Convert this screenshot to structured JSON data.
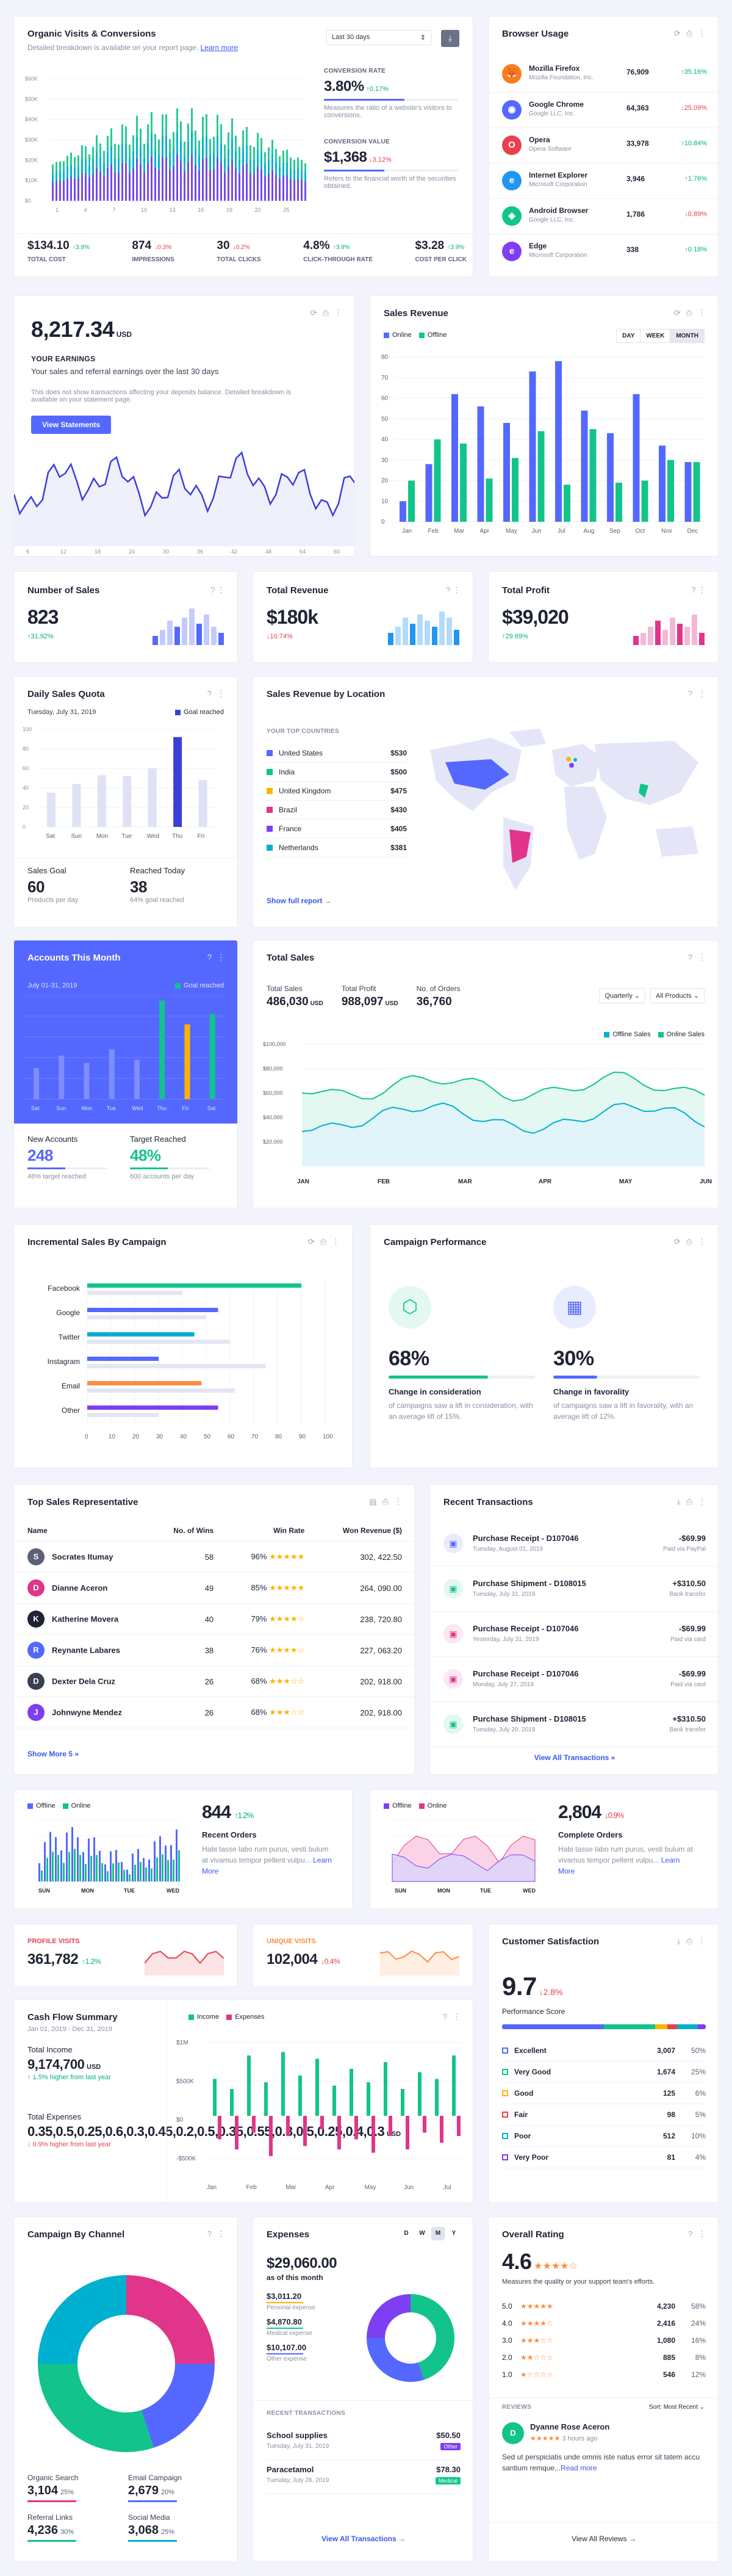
{
  "organic": {
    "title": "Organic Visits & Conversions",
    "subtitle": "Detailed breakdown is available on your report page.",
    "link": "Learn more",
    "range": "Last 30 days",
    "yticks": [
      "$60K",
      "$50K",
      "$40K",
      "$30K",
      "$20K",
      "$10K",
      "$0"
    ],
    "xticks": [
      "1",
      "4",
      "7",
      "10",
      "13",
      "16",
      "19",
      "22",
      "25"
    ],
    "conv_label": "CONVERSION RATE",
    "conv_value": "3.80%",
    "conv_delta": "↑0.17%",
    "conv_desc": "Measures the ratio of a website's visitors to conversions.",
    "cval_label": "CONVERSION VALUE",
    "cval_value": "$1,368",
    "cval_delta": "↓3.12%",
    "cval_desc": "Refers to the financial worth of the securities obtained.",
    "stats": [
      {
        "value": "$134.10",
        "delta": "↑3.9%",
        "dir": "up",
        "label": "TOTAL COST"
      },
      {
        "value": "874",
        "delta": "↓0.3%",
        "dir": "dn",
        "label": "IMPRESSIONS"
      },
      {
        "value": "30",
        "delta": "↓0.2%",
        "dir": "dn",
        "label": "TOTAL CLICKS"
      },
      {
        "value": "4.8%",
        "delta": "↑3.9%",
        "dir": "up",
        "label": "CLICK-THROUGH RATE"
      },
      {
        "value": "$3.28",
        "delta": "↑3.9%",
        "dir": "up",
        "label": "COST PER CLICK"
      }
    ]
  },
  "browser": {
    "title": "Browser Usage",
    "items": [
      {
        "name": "Mozilla Firefox",
        "company": "Mozilla Foundation, Inc.",
        "value": "76,909",
        "delta": "↑35.16%",
        "dir": "up",
        "color": "#ff7a1a",
        "icon": "firefox-icon",
        "glyph": "🦊"
      },
      {
        "name": "Google Chrome",
        "company": "Google LLC, Inc.",
        "value": "64,363",
        "delta": "↓25.09%",
        "dir": "dn",
        "color": "#5468ff",
        "icon": "chrome-icon",
        "glyph": "◉"
      },
      {
        "name": "Opera",
        "company": "Opera Software",
        "value": "33,978",
        "delta": "↑10.84%",
        "dir": "up",
        "color": "#e8404d",
        "icon": "opera-icon",
        "glyph": "O"
      },
      {
        "name": "Internet Explorer",
        "company": "Microsoft Corporation",
        "value": "3,946",
        "delta": "↑1.76%",
        "dir": "up",
        "color": "#2196f3",
        "icon": "ie-icon",
        "glyph": "e"
      },
      {
        "name": "Android Browser",
        "company": "Google LLC, Inc.",
        "value": "1,786",
        "dir": "dn",
        "delta": "↓0.89%",
        "color": "#12c48b",
        "icon": "android-icon",
        "glyph": "◈"
      },
      {
        "name": "Edge",
        "company": "Microsoft Corporation",
        "value": "338",
        "delta": "↑0.18%",
        "dir": "up",
        "color": "#7e3ff2",
        "icon": "edge-icon",
        "glyph": "e"
      }
    ]
  },
  "earnings": {
    "value": "8,217.34",
    "unit": "USD",
    "heading": "YOUR EARNINGS",
    "desc": "Your sales and referral earnings over the last 30 days",
    "note": "This does not show transactions affecting your deposits balance. Detailed breakdown is available on your statement page.",
    "button": "View Statements",
    "xticks": [
      "6",
      "12",
      "18",
      "24",
      "30",
      "36",
      "42",
      "48",
      "54",
      "60"
    ]
  },
  "sales_rev": {
    "title": "Sales Revenue",
    "legend": [
      "Online",
      "Offline"
    ],
    "tabs": [
      "DAY",
      "WEEK",
      "MONTH"
    ],
    "yticks": [
      "80",
      "70",
      "60",
      "50",
      "40",
      "30",
      "20",
      "10",
      "0"
    ],
    "months": [
      "Jan",
      "Feb",
      "Mar",
      "Apr",
      "May",
      "Jun",
      "Jul",
      "Aug",
      "Sep",
      "Oct",
      "Nov",
      "Dec"
    ],
    "online": [
      10,
      28,
      62,
      56,
      48,
      73,
      78,
      54,
      43,
      62,
      37,
      29
    ],
    "offline": [
      20,
      40,
      38,
      21,
      31,
      44,
      18,
      45,
      19,
      20,
      30,
      29
    ]
  },
  "mini": [
    {
      "title": "Number of Sales",
      "value": "823",
      "delta": "↑31.92%",
      "dir": "up",
      "color": "#5468ff",
      "bars": [
        3,
        5,
        8,
        6,
        9,
        12,
        7,
        10,
        6,
        4
      ]
    },
    {
      "title": "Total Revenue",
      "value": "$180k",
      "delta": "↓10.74%",
      "dir": "dn",
      "color": "#2196f3",
      "bars": [
        4,
        6,
        9,
        7,
        10,
        8,
        6,
        11,
        9,
        5
      ]
    },
    {
      "title": "Total Profit",
      "value": "$39,020",
      "delta": "↑29.69%",
      "dir": "up",
      "color": "#e0358a",
      "bars": [
        3,
        4,
        6,
        8,
        5,
        9,
        7,
        6,
        10,
        4
      ]
    }
  ],
  "quota": {
    "title": "Daily Sales Quota",
    "date": "Tuesday, July 31, 2019",
    "legend": "Goal reached",
    "yticks": [
      "100",
      "80",
      "60",
      "40",
      "20",
      "0"
    ],
    "days": [
      "Sat",
      "Sun",
      "Mon",
      "Tue",
      "Wed",
      "Thu",
      "Fri"
    ],
    "vals": [
      35,
      44,
      53,
      52,
      60,
      92,
      48
    ],
    "goal_idx": 5,
    "goal_label": "Sales Goal",
    "goal_value": "60",
    "goal_sub": "Products per day",
    "reach_label": "Reached Today",
    "reach_value": "38",
    "reach_sub": "64% goal reached"
  },
  "location": {
    "title": "Sales Revenue by Location",
    "top": "YOUR TOP COUNTRIES",
    "countries": [
      {
        "name": "United States",
        "value": "$530",
        "color": "#5468ff"
      },
      {
        "name": "India",
        "value": "$500",
        "color": "#12c48b"
      },
      {
        "name": "United Kingdom",
        "value": "$475",
        "color": "#ffb300"
      },
      {
        "name": "Brazil",
        "value": "$430",
        "color": "#e0358a"
      },
      {
        "name": "France",
        "value": "$405",
        "color": "#7e3ff2"
      },
      {
        "name": "Netherlands",
        "value": "$381",
        "color": "#00b0d0"
      }
    ],
    "link": "Show full report →"
  },
  "accounts": {
    "title": "Accounts This Month",
    "date": "July 01-31, 2019",
    "legend": "Goal reached",
    "vals": [
      30,
      42,
      35,
      48,
      38,
      95,
      72,
      82
    ],
    "labels": [
      "Sat",
      "Sun",
      "Mon",
      "Tue",
      "Wed",
      "Thu",
      "Fri",
      "Sat"
    ],
    "new_label": "New Accounts",
    "new_value": "248",
    "new_sub": "48% target reached",
    "target_label": "Target Reached",
    "target_value": "48%",
    "target_sub": "600 accounts per day"
  },
  "totalsales": {
    "title": "Total Sales",
    "stats": [
      {
        "label": "Total Sales",
        "value": "486,030",
        "unit": "USD"
      },
      {
        "label": "Total Profit",
        "value": "988,097",
        "unit": "USD"
      },
      {
        "label": "No. of Orders",
        "value": "36,760",
        "unit": ""
      }
    ],
    "filters": [
      "Quarterly",
      "All Products"
    ],
    "legend": [
      "Offline Sales",
      "Online Sales"
    ],
    "yticks": [
      "$100,000",
      "$80,000",
      "$60,000",
      "$40,000",
      "$20,000"
    ],
    "xticks": [
      "JAN",
      "FEB",
      "MAR",
      "APR",
      "MAY",
      "JUN"
    ]
  },
  "campaign": {
    "title": "Incremental Sales By Campaign",
    "cats": [
      "Facebook",
      "Google",
      "Twitter",
      "Instagram",
      "Email",
      "Other"
    ],
    "xticks": [
      "0",
      "10",
      "20",
      "30",
      "40",
      "50",
      "60",
      "70",
      "80",
      "90",
      "100"
    ],
    "colors": [
      "#12c48b",
      "#5468ff",
      "#00b0d0",
      "#5468ff",
      "#ff8a3d",
      "#7e3ff2"
    ],
    "vals": [
      [
        90,
        40
      ],
      [
        55,
        50
      ],
      [
        45,
        60
      ],
      [
        30,
        75
      ],
      [
        48,
        62
      ],
      [
        55,
        30
      ]
    ]
  },
  "perf": {
    "title": "Campaign Performance",
    "items": [
      {
        "value": "68%",
        "label": "Change in consideration",
        "desc": "of campaigns saw a lift in consideration, with an average lift of 15%.",
        "color": "#12c48b",
        "pct": 68
      },
      {
        "value": "30%",
        "label": "Change in favorality",
        "desc": "of campaigns saw a lift in favorality, with an average lift of 12%.",
        "color": "#5468ff",
        "pct": 30
      }
    ]
  },
  "reps": {
    "title": "Top Sales Representative",
    "headers": [
      "Name",
      "No. of Wins",
      "Win Rate",
      "Won Revenue ($)"
    ],
    "rows": [
      {
        "name": "Socrates Itumay",
        "wins": "58",
        "rate": "96%",
        "stars": "★★★★★",
        "rev": "302, 422.50",
        "init": "S",
        "bg": "#5c6275"
      },
      {
        "name": "Dianne Aceron",
        "wins": "49",
        "rate": "85%",
        "stars": "★★★★★",
        "rev": "264, 090.00",
        "init": "D",
        "bg": "#e0358a"
      },
      {
        "name": "Katherine Movera",
        "wins": "40",
        "rate": "79%",
        "stars": "★★★★☆",
        "rev": "238, 720.80",
        "init": "K",
        "bg": "#1f2333"
      },
      {
        "name": "Reynante Labares",
        "wins": "38",
        "rate": "76%",
        "stars": "★★★★☆",
        "rev": "227, 063.20",
        "init": "R",
        "bg": "#5468ff"
      },
      {
        "name": "Dexter Dela Cruz",
        "wins": "26",
        "rate": "68%",
        "stars": "★★★☆☆",
        "rev": "202, 918.00",
        "init": "D",
        "bg": "#3a3f52"
      },
      {
        "name": "Johnwyne Mendez",
        "wins": "26",
        "rate": "68%",
        "stars": "★★★☆☆",
        "rev": "202, 918.00",
        "init": "J",
        "bg": "#7e3ff2"
      }
    ],
    "more": "Show More 5 »"
  },
  "trans": {
    "title": "Recent Transactions",
    "rows": [
      {
        "title": "Purchase Receipt - D107046",
        "date": "Tuesday, August 01, 2019",
        "amount": "-$69.99",
        "via": "Paid via PayPal",
        "color": "#5468ff",
        "bg": "#e9ecff"
      },
      {
        "title": "Purchase Shipment - D108015",
        "date": "Tuesday, July 31, 2019",
        "amount": "+$310.50",
        "via": "Bank transfer",
        "color": "#12c48b",
        "bg": "#e3f8f0"
      },
      {
        "title": "Purchase Receipt - D107046",
        "date": "Yesterday, July 31, 2019",
        "amount": "-$69.99",
        "via": "Paid via card",
        "color": "#e0358a",
        "bg": "#fde7f1"
      },
      {
        "title": "Purchase Receipt - D107046",
        "date": "Monday, July 27, 2019",
        "amount": "-$69.99",
        "via": "Paid via card",
        "color": "#e0358a",
        "bg": "#fde7f1"
      },
      {
        "title": "Purchase Shipment - D108015",
        "date": "Tuesday, July 20, 2019",
        "amount": "+$310.50",
        "via": "Bank transfer",
        "color": "#12c48b",
        "bg": "#e3f8f0"
      }
    ],
    "link": "View All Transactions »"
  },
  "orders": [
    {
      "legend": [
        "Offline",
        "Online"
      ],
      "value": "844",
      "delta": "↑1.2%",
      "dir": "up",
      "label": "Recent Orders",
      "desc": "Habi tasse labo rum purus, vesti bulum at vivamus tempor pellent vulpu...",
      "link": "Learn More",
      "xticks": [
        "SUN",
        "MON",
        "TUE",
        "WED"
      ]
    },
    {
      "legend": [
        "Offline",
        "Online"
      ],
      "value": "2,804",
      "delta": "↓0.9%",
      "dir": "dn",
      "label": "Complete Orders",
      "desc": "Habi tasse labo rum purus, vesti bulum at vivamus tempor pellent vulpu...",
      "link": "Learn More",
      "xticks": [
        "SUN",
        "MON",
        "TUE",
        "WED"
      ]
    }
  ],
  "visits": [
    {
      "label": "PROFILE VISITS",
      "value": "361,782",
      "delta": "↑1.2%",
      "dir": "up",
      "color": "#e8404d"
    },
    {
      "label": "UNIQUE VISITS",
      "value": "102,004",
      "delta": "↓0.4%",
      "dir": "dn",
      "color": "#ff8a3d"
    }
  ],
  "satisfaction": {
    "title": "Customer Satisfaction",
    "value": "9.7",
    "delta": "↓2.8%",
    "label": "Performance Score",
    "rows": [
      {
        "name": "Excellent",
        "n": "3,007",
        "pct": "50%",
        "color": "#5468ff"
      },
      {
        "name": "Very Good",
        "n": "1,674",
        "pct": "25%",
        "color": "#12c48b"
      },
      {
        "name": "Good",
        "n": "125",
        "pct": "6%",
        "color": "#ffb300"
      },
      {
        "name": "Fair",
        "n": "98",
        "pct": "5%",
        "color": "#e8404d"
      },
      {
        "name": "Poor",
        "n": "512",
        "pct": "10%",
        "color": "#00b0d0"
      },
      {
        "name": "Very Poor",
        "n": "81",
        "pct": "4%",
        "color": "#7e3ff2"
      }
    ]
  },
  "cashflow": {
    "title": "Cash Flow Summary",
    "date": "Jan 01, 2019 - Dec 31, 2019",
    "income_label": "Total Income",
    "income": "9,174,700",
    "income_unit": "USD",
    "income_delta": "↑ 1.5% higher from last year",
    "exp_label": "Total Expenses",
    "exp": [
      0.35,
      0.5,
      0.25,
      0.6,
      0.3,
      0.45,
      0.2,
      0.5,
      0.35,
      0.55,
      0.3,
      0.5,
      0.25,
      0.4,
      0.3
    ],
    "exp_unit": "USD",
    "exp_delta": "↓ 0.9% higher from last year",
    "legend": [
      "Income",
      "Expenses"
    ],
    "yticks": [
      "$1M",
      "$500K",
      "$0",
      "-$500K"
    ],
    "xticks": [
      "Jan",
      "Feb",
      "Mar",
      "Apr",
      "May",
      "Jun",
      "Jul"
    ],
    "inc": [
      0.55,
      0.4,
      0.9,
      0.5,
      0.95,
      0.6,
      0.85,
      0.45,
      0.7,
      0.5,
      0.8,
      0.4,
      0.65,
      0.55,
      0.9
    ]
  },
  "channel": {
    "title": "Campaign By Channel",
    "slices": [
      {
        "name": "Organic Search",
        "value": "3,104",
        "pct": "25%",
        "color": "#e0358a",
        "p": 25
      },
      {
        "name": "Email Campaign",
        "value": "2,679",
        "pct": "20%",
        "color": "#5468ff",
        "p": 20
      },
      {
        "name": "Referral Links",
        "value": "4,236",
        "pct": "30%",
        "color": "#12c48b",
        "p": 30
      },
      {
        "name": "Social Media",
        "value": "3,068",
        "pct": "25%",
        "color": "#00b0d0",
        "p": 25
      }
    ]
  },
  "expenses": {
    "title": "Expenses",
    "tabs": [
      "D",
      "W",
      "M",
      "Y"
    ],
    "value": "$29,060.00",
    "sub": "as of this month",
    "items": [
      {
        "value": "$3,011.20",
        "label": "Personal expense",
        "color": "#ffb300"
      },
      {
        "value": "$4,870.80",
        "label": "Medical expense",
        "color": "#12c48b"
      },
      {
        "value": "$10,107.00",
        "label": "Other expense",
        "color": "#5468ff"
      }
    ],
    "recent": "RECENT TRANSACTIONS",
    "tx": [
      {
        "name": "School supplies",
        "date": "Tuesday, July 31, 2019",
        "amount": "$50.50",
        "tag": "Other",
        "tagcolor": "#7e3ff2"
      },
      {
        "name": "Paracetamol",
        "date": "Tuesday, July 28, 2019",
        "amount": "$78.30",
        "tag": "Medical",
        "tagcolor": "#12c48b"
      }
    ],
    "link": "View All Transactions →",
    "slices": [
      {
        "p": 45,
        "color": "#12c48b"
      },
      {
        "p": 30,
        "color": "#5468ff"
      },
      {
        "p": 25,
        "color": "#7e3ff2"
      }
    ]
  },
  "rating": {
    "title": "Overall Rating",
    "value": "4.6",
    "stars": "★★★★☆",
    "desc": "Measures the quality or your support team's efforts.",
    "rows": [
      {
        "lvl": "5.0",
        "stars": "★★★★★",
        "n": "4,230",
        "pct": "58%"
      },
      {
        "lvl": "4.0",
        "stars": "★★★★☆",
        "n": "2,416",
        "pct": "24%"
      },
      {
        "lvl": "3.0",
        "stars": "★★★☆☆",
        "n": "1,080",
        "pct": "16%"
      },
      {
        "lvl": "2.0",
        "stars": "★★☆☆☆",
        "n": "885",
        "pct": "8%"
      },
      {
        "lvl": "1.0",
        "stars": "★☆☆☆☆",
        "n": "546",
        "pct": "12%"
      }
    ],
    "reviews": "REVIEWS",
    "sort": "Sort: Most Recent ⌄",
    "reviewer": "Dyanne Rose Aceron",
    "rstars": "★★★★★",
    "rtime": "3 hours ago",
    "text": "Sed ut perspiciatis unde omnis iste natus error sit tatem accu santium remque...",
    "more": "Read more",
    "link": "View All Reviews →"
  }
}
